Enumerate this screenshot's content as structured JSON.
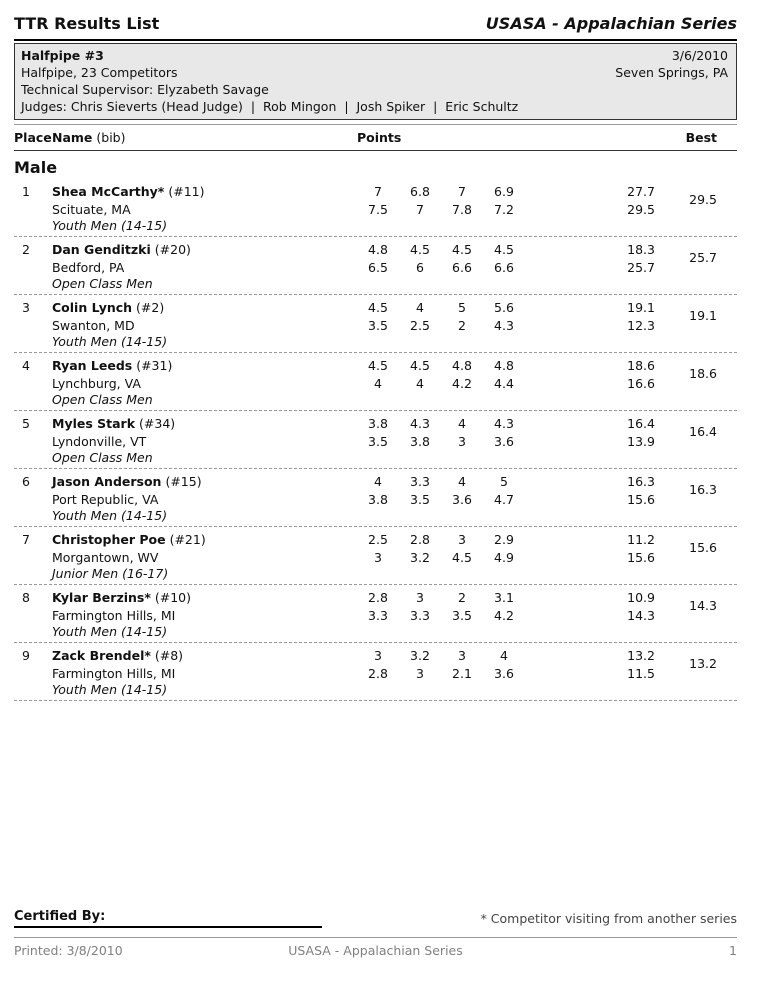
{
  "header": {
    "title": "TTR Results List",
    "series": "USASA - Appalachian Series"
  },
  "event_info": {
    "name": "Halfpipe #3",
    "date": "3/6/2010",
    "description": "Halfpipe, 23 Competitors",
    "location": "Seven Springs, PA",
    "technical_supervisor": "Technical Supervisor: Elyzabeth Savage",
    "judges": "Judges: Chris Sieverts (Head Judge)  |  Rob Mingon  |  Josh Spiker  |  Eric Schultz"
  },
  "table": {
    "col_place": "Place",
    "col_name": "Name",
    "col_bib": "(bib)",
    "col_points": "Points",
    "col_best": "Best",
    "section": "Male",
    "rows": [
      {
        "place": "1",
        "name": "Shea McCarthy*",
        "bib": "(#11)",
        "city": "Scituate, MA",
        "category": "Youth Men (14-15)",
        "run1": [
          "7",
          "6.8",
          "7",
          "6.9"
        ],
        "run1_total": "27.7",
        "run2": [
          "7.5",
          "7",
          "7.8",
          "7.2"
        ],
        "run2_total": "29.5",
        "best": "29.5"
      },
      {
        "place": "2",
        "name": "Dan Genditzki",
        "bib": "(#20)",
        "city": "Bedford, PA",
        "category": "Open Class Men",
        "run1": [
          "4.8",
          "4.5",
          "4.5",
          "4.5"
        ],
        "run1_total": "18.3",
        "run2": [
          "6.5",
          "6",
          "6.6",
          "6.6"
        ],
        "run2_total": "25.7",
        "best": "25.7"
      },
      {
        "place": "3",
        "name": "Colin Lynch",
        "bib": "(#2)",
        "city": "Swanton, MD",
        "category": "Youth Men (14-15)",
        "run1": [
          "4.5",
          "4",
          "5",
          "5.6"
        ],
        "run1_total": "19.1",
        "run2": [
          "3.5",
          "2.5",
          "2",
          "4.3"
        ],
        "run2_total": "12.3",
        "best": "19.1"
      },
      {
        "place": "4",
        "name": "Ryan Leeds",
        "bib": "(#31)",
        "city": "Lynchburg, VA",
        "category": "Open Class Men",
        "run1": [
          "4.5",
          "4.5",
          "4.8",
          "4.8"
        ],
        "run1_total": "18.6",
        "run2": [
          "4",
          "4",
          "4.2",
          "4.4"
        ],
        "run2_total": "16.6",
        "best": "18.6"
      },
      {
        "place": "5",
        "name": "Myles Stark",
        "bib": "(#34)",
        "city": "Lyndonville, VT",
        "category": "Open Class Men",
        "run1": [
          "3.8",
          "4.3",
          "4",
          "4.3"
        ],
        "run1_total": "16.4",
        "run2": [
          "3.5",
          "3.8",
          "3",
          "3.6"
        ],
        "run2_total": "13.9",
        "best": "16.4"
      },
      {
        "place": "6",
        "name": "Jason Anderson",
        "bib": "(#15)",
        "city": "Port Republic, VA",
        "category": "Youth Men (14-15)",
        "run1": [
          "4",
          "3.3",
          "4",
          "5"
        ],
        "run1_total": "16.3",
        "run2": [
          "3.8",
          "3.5",
          "3.6",
          "4.7"
        ],
        "run2_total": "15.6",
        "best": "16.3"
      },
      {
        "place": "7",
        "name": "Christopher Poe",
        "bib": "(#21)",
        "city": "Morgantown, WV",
        "category": "Junior Men (16-17)",
        "run1": [
          "2.5",
          "2.8",
          "3",
          "2.9"
        ],
        "run1_total": "11.2",
        "run2": [
          "3",
          "3.2",
          "4.5",
          "4.9"
        ],
        "run2_total": "15.6",
        "best": "15.6"
      },
      {
        "place": "8",
        "name": "Kylar Berzins*",
        "bib": "(#10)",
        "city": "Farmington Hills, MI",
        "category": "Youth Men (14-15)",
        "run1": [
          "2.8",
          "3",
          "2",
          "3.1"
        ],
        "run1_total": "10.9",
        "run2": [
          "3.3",
          "3.3",
          "3.5",
          "4.2"
        ],
        "run2_total": "14.3",
        "best": "14.3"
      },
      {
        "place": "9",
        "name": "Zack Brendel*",
        "bib": "(#8)",
        "city": "Farmington Hills, MI",
        "category": "Youth Men (14-15)",
        "run1": [
          "3",
          "3.2",
          "3",
          "4"
        ],
        "run1_total": "13.2",
        "run2": [
          "2.8",
          "3",
          "2.1",
          "3.6"
        ],
        "run2_total": "11.5",
        "best": "13.2"
      }
    ]
  },
  "footer": {
    "certified_by": "Certified By:",
    "visiting_note": "* Competitor visiting from another series",
    "printed": "Printed: 3/8/2010",
    "series": "USASA - Appalachian Series",
    "page": "1"
  }
}
